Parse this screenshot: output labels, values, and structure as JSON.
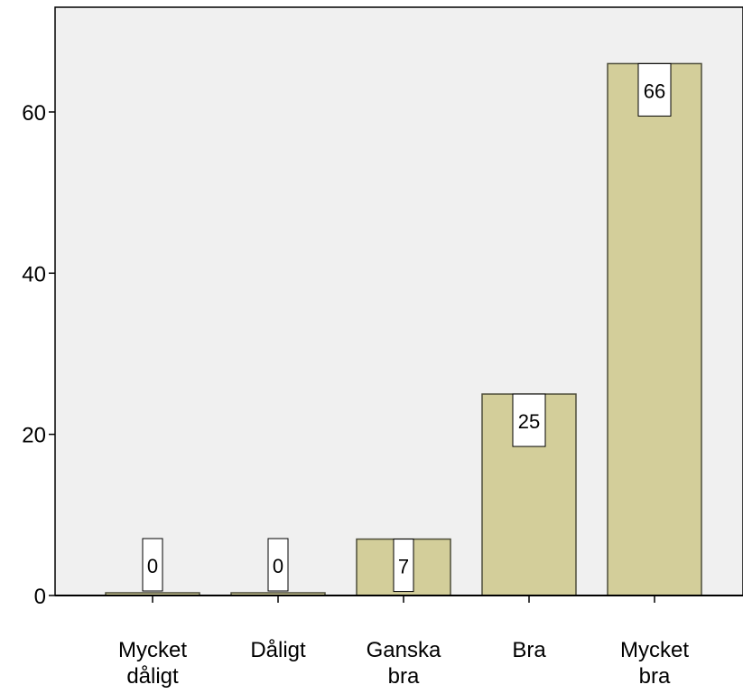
{
  "chart_data": {
    "type": "bar",
    "categories": [
      [
        "Mycket",
        "dåligt"
      ],
      [
        "Dåligt"
      ],
      [
        "Ganska",
        "bra"
      ],
      [
        "Bra"
      ],
      [
        "Mycket",
        "bra"
      ]
    ],
    "values": [
      0,
      0,
      7,
      25,
      66
    ],
    "value_labels": [
      "0",
      "0",
      "7",
      "25",
      "66"
    ],
    "ylim": [
      0,
      73
    ],
    "yticks": [
      0,
      20,
      40,
      60
    ],
    "ytick_labels": [
      "0",
      "20",
      "40",
      "60"
    ],
    "title": "",
    "xlabel": "",
    "ylabel": "",
    "grid": false,
    "colors": {
      "bar_fill": "#d3ce9a",
      "bar_stroke": "#4d4d3a",
      "plot_background": "#f0f0f0",
      "axis": "#000000",
      "label_box": "#ffffff"
    }
  }
}
